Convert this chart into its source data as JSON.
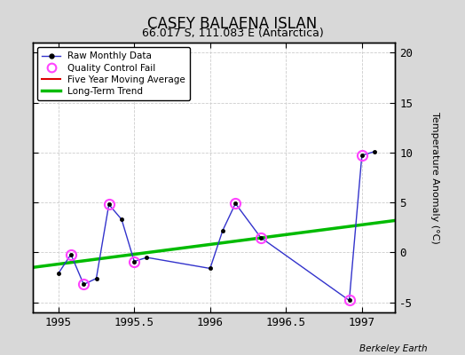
{
  "title": "CASEY BALAENA ISLAN",
  "subtitle": "66.017 S, 111.083 E (Antarctica)",
  "ylabel": "Temperature Anomaly (°C)",
  "watermark": "Berkeley Earth",
  "xlim": [
    1994.83,
    1997.22
  ],
  "ylim": [
    -6,
    21
  ],
  "yticks": [
    -5,
    0,
    5,
    10,
    15,
    20
  ],
  "xticks": [
    1995,
    1995.5,
    1996,
    1996.5,
    1997
  ],
  "xticklabels": [
    "1995",
    "1995.5",
    "1996",
    "1996.5",
    "1997"
  ],
  "raw_x": [
    1995.0,
    1995.083,
    1995.167,
    1995.25,
    1995.333,
    1995.417,
    1995.5,
    1995.583,
    1996.0,
    1996.083,
    1996.167,
    1996.333,
    1996.917,
    1997.0,
    1997.083
  ],
  "raw_y": [
    -2.1,
    -0.2,
    -3.2,
    -2.6,
    4.8,
    3.3,
    -0.9,
    -0.5,
    -1.6,
    2.2,
    4.9,
    1.5,
    -4.8,
    9.7,
    10.1
  ],
  "qc_fail_x": [
    1995.083,
    1995.167,
    1995.333,
    1995.5,
    1996.167,
    1996.333,
    1996.917,
    1997.0
  ],
  "qc_fail_y": [
    -0.2,
    -3.2,
    4.8,
    -0.9,
    4.9,
    1.5,
    -4.8,
    9.7
  ],
  "trend_x": [
    1994.83,
    1997.22
  ],
  "trend_y": [
    -1.5,
    3.2
  ],
  "raw_line_color": "#3333cc",
  "raw_marker_color": "#000000",
  "qc_color": "#ff44ff",
  "trend_color": "#00bb00",
  "five_yr_color": "#dd0000",
  "bg_color": "#d8d8d8",
  "plot_bg_color": "#ffffff",
  "grid_color": "#cccccc",
  "title_fontsize": 12,
  "subtitle_fontsize": 9,
  "tick_fontsize": 9,
  "ylabel_fontsize": 8
}
